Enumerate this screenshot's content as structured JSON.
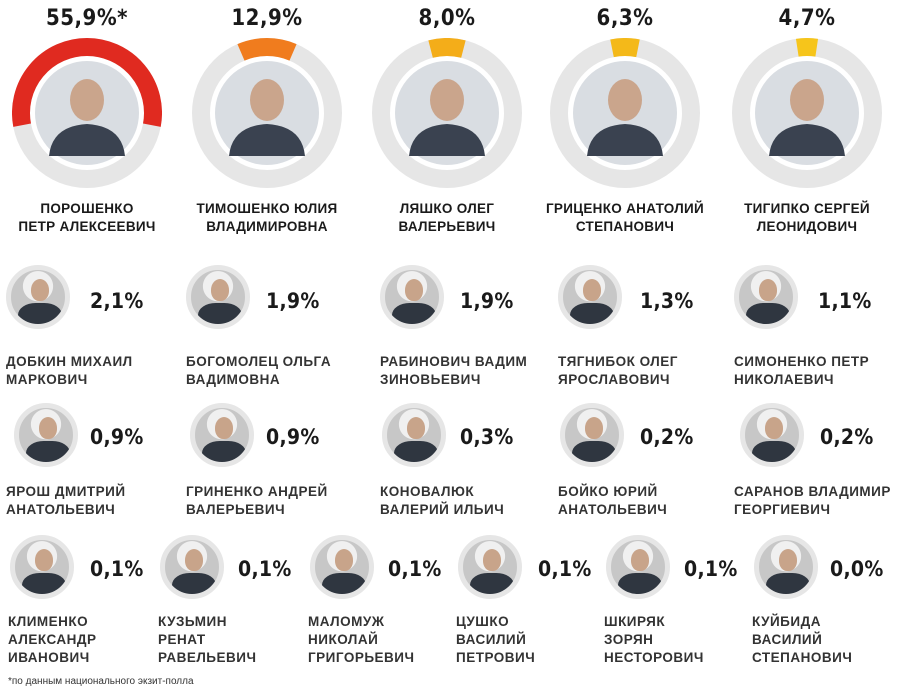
{
  "chart_data": {
    "type": "donut-ranking",
    "unit": "%",
    "top_candidates": [
      {
        "name_line1": "ПОРОШЕНКО",
        "name_line2": "ПЕТР АЛЕКСЕЕВИЧ",
        "label": "55,9%*",
        "value": 55.9,
        "color": "#e02a20"
      },
      {
        "name_line1": "ТИМОШЕНКО ЮЛИЯ",
        "name_line2": "ВЛАДИМИРОВНА",
        "label": "12,9%",
        "value": 12.9,
        "color": "#f07c1e"
      },
      {
        "name_line1": "ЛЯШКО ОЛЕГ",
        "name_line2": "ВАЛЕРЬЕВИЧ",
        "label": "8,0%",
        "value": 8.0,
        "color": "#f4ad19"
      },
      {
        "name_line1": "ГРИЦЕНКО АНАТОЛИЙ",
        "name_line2": "СТЕПАНОВИЧ",
        "label": "6,3%",
        "value": 6.3,
        "color": "#f4b919"
      },
      {
        "name_line1": "ТИГИПКО СЕРГЕЙ",
        "name_line2": "ЛЕОНИДОВИЧ",
        "label": "4,7%",
        "value": 4.7,
        "color": "#f6c51b"
      }
    ],
    "other_candidates": [
      {
        "name_line1": "ДОБКИН МИХАИЛ",
        "name_line2": "МАРКОВИЧ",
        "label": "2,1%",
        "value": 2.1
      },
      {
        "name_line1": "БОГОМОЛЕЦ ОЛЬГА",
        "name_line2": "ВАДИМОВНА",
        "label": "1,9%",
        "value": 1.9
      },
      {
        "name_line1": "РАБИНОВИЧ ВАДИМ",
        "name_line2": "ЗИНОВЬЕВИЧ",
        "label": "1,9%",
        "value": 1.9
      },
      {
        "name_line1": "ТЯГНИБОК ОЛЕГ",
        "name_line2": "ЯРОСЛАВОВИЧ",
        "label": "1,3%",
        "value": 1.3
      },
      {
        "name_line1": "СИМОНЕНКО ПЕТР",
        "name_line2": "НИКОЛАЕВИЧ",
        "label": "1,1%",
        "value": 1.1
      },
      {
        "name_line1": "ЯРОШ ДМИТРИЙ",
        "name_line2": "АНАТОЛЬЕВИЧ",
        "label": "0,9%",
        "value": 0.9
      },
      {
        "name_line1": "ГРИНЕНКО АНДРЕЙ",
        "name_line2": "ВАЛЕРЬЕВИЧ",
        "label": "0,9%",
        "value": 0.9
      },
      {
        "name_line1": "КОНОВАЛЮК",
        "name_line2": "ВАЛЕРИЙ ИЛЬИЧ",
        "label": "0,3%",
        "value": 0.3
      },
      {
        "name_line1": "БОЙКО ЮРИЙ",
        "name_line2": "АНАТОЛЬЕВИЧ",
        "label": "0,2%",
        "value": 0.2
      },
      {
        "name_line1": "САРАНОВ ВЛАДИМИР",
        "name_line2": "ГЕОРГИЕВИЧ",
        "label": "0,2%",
        "value": 0.2
      },
      {
        "name_line1": "КЛИМЕНКО",
        "name_line2": "АЛЕКСАНДР",
        "name_line3": "ИВАНОВИЧ",
        "label": "0,1%",
        "value": 0.1
      },
      {
        "name_line1": "КУЗЬМИН",
        "name_line2": "РЕНАТ",
        "name_line3": "РАВЕЛЬЕВИЧ",
        "label": "0,1%",
        "value": 0.1
      },
      {
        "name_line1": "МАЛОМУЖ",
        "name_line2": "НИКОЛАЙ",
        "name_line3": "ГРИГОРЬЕВИЧ",
        "label": "0,1%",
        "value": 0.1
      },
      {
        "name_line1": "ЦУШКО",
        "name_line2": "ВАСИЛИЙ",
        "name_line3": "ПЕТРОВИЧ",
        "label": "0,1%",
        "value": 0.1
      },
      {
        "name_line1": "ШКИРЯК",
        "name_line2": "ЗОРЯН",
        "name_line3": "НЕСТОРОВИЧ",
        "label": "0,1%",
        "value": 0.1
      },
      {
        "name_line1": "КУЙБИДА",
        "name_line2": "ВАСИЛИЙ",
        "name_line3": "СТЕПАНОВИЧ",
        "label": "0,0%",
        "value": 0.0
      }
    ],
    "footnote": "*по данным национального экзит-полла",
    "ring_track_color": "#e6e6e6"
  }
}
